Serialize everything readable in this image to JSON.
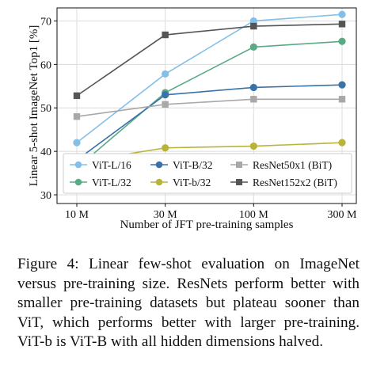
{
  "chart_data": {
    "type": "line",
    "xlabel": "Number of JFT pre-training samples",
    "ylabel": "Linear 5-shot ImageNet Top1 [%]",
    "categories": [
      "10 M",
      "30 M",
      "100 M",
      "300 M"
    ],
    "ylim": [
      28,
      73
    ],
    "yticks": [
      30,
      40,
      50,
      60,
      70
    ],
    "grid": true,
    "legend_position": "lower-right",
    "series": [
      {
        "name": "ViT-L/16",
        "color": "#84bfe8",
        "marker": "circle",
        "values": [
          42.0,
          57.8,
          70.0,
          71.5
        ]
      },
      {
        "name": "ViT-L/32",
        "color": "#5aaa85",
        "marker": "circle",
        "values": [
          36.2,
          53.5,
          64.0,
          65.3
        ]
      },
      {
        "name": "ViT-B/32",
        "color": "#3a72a8",
        "marker": "circle",
        "values": [
          38.0,
          53.0,
          54.7,
          55.3
        ]
      },
      {
        "name": "ViT-b/32",
        "color": "#b8b43a",
        "marker": "circle",
        "values": [
          37.5,
          40.8,
          41.2,
          42.0
        ]
      },
      {
        "name": "ResNet50x1 (BiT)",
        "color": "#a8a8a8",
        "marker": "square",
        "values": [
          48.0,
          50.8,
          52.0,
          52.0
        ]
      },
      {
        "name": "ResNet152x2 (BiT)",
        "color": "#555555",
        "marker": "square",
        "values": [
          52.8,
          66.8,
          68.8,
          69.3
        ]
      }
    ]
  },
  "caption": "Figure 4: Linear few-shot evaluation on ImageNet versus pre-training size. ResNets perform better with smaller pre-training datasets but plateau sooner than ViT, which performs better with larger pre-training. ViT-b is ViT-B with all hidden dimensions halved."
}
